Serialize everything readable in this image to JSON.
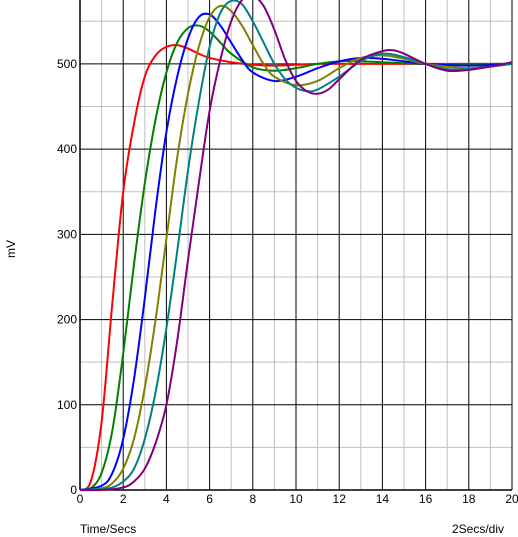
{
  "chart_data": {
    "type": "line",
    "xlabel": "Time/Secs",
    "ylabel": "mV",
    "scale_note": "2Secs/div",
    "xlim": [
      0,
      20
    ],
    "ylim": [
      0,
      575
    ],
    "x_ticks": [
      0,
      2,
      4,
      6,
      8,
      10,
      12,
      14,
      16,
      18,
      20
    ],
    "y_ticks": [
      0,
      100,
      200,
      300,
      400,
      500
    ],
    "grid": true,
    "colors": {
      "major_grid": "#000000",
      "minor_grid": "#c0c0c0",
      "background": "#ffffff"
    },
    "series": [
      {
        "color": "#ff0000",
        "x": [
          0,
          0.5,
          1,
          1.5,
          2,
          2.5,
          3,
          3.5,
          4,
          4.5,
          5,
          5.5,
          6,
          7,
          8,
          9,
          10,
          11,
          12,
          14,
          16,
          18,
          20
        ],
        "y": [
          0,
          10,
          80,
          220,
          350,
          430,
          485,
          510,
          520,
          522,
          518,
          512,
          507,
          502,
          499,
          498,
          499,
          500,
          500,
          500,
          500,
          500,
          500
        ]
      },
      {
        "color": "#008000",
        "x": [
          0,
          0.5,
          1,
          1.5,
          2,
          2.5,
          3,
          3.5,
          4,
          4.5,
          5,
          5.5,
          6,
          6.5,
          7,
          8,
          9,
          10,
          11,
          12,
          13,
          14,
          16,
          18,
          20
        ],
        "y": [
          0,
          2,
          20,
          70,
          160,
          265,
          360,
          435,
          490,
          525,
          542,
          545,
          538,
          525,
          512,
          496,
          492,
          495,
          500,
          503,
          503,
          502,
          500,
          500,
          500
        ]
      },
      {
        "color": "#0000ff",
        "x": [
          0,
          1,
          1.5,
          2,
          2.5,
          3,
          3.5,
          4,
          4.5,
          5,
          5.5,
          6,
          6.5,
          7,
          7.5,
          8,
          9,
          10,
          11,
          12,
          13,
          14,
          15,
          16,
          18,
          20
        ],
        "y": [
          0,
          5,
          20,
          60,
          130,
          225,
          330,
          420,
          485,
          530,
          555,
          558,
          545,
          525,
          505,
          490,
          480,
          485,
          495,
          503,
          507,
          506,
          503,
          500,
          498,
          500
        ]
      },
      {
        "color": "#808000",
        "x": [
          0,
          1,
          1.5,
          2,
          2.5,
          3,
          3.5,
          4,
          4.5,
          5,
          5.5,
          6,
          6.5,
          7,
          7.5,
          8,
          8.5,
          9,
          10,
          11,
          12,
          13,
          14,
          15,
          16,
          18,
          20
        ],
        "y": [
          0,
          2,
          8,
          25,
          60,
          120,
          200,
          295,
          390,
          465,
          520,
          555,
          568,
          562,
          545,
          522,
          500,
          485,
          475,
          480,
          495,
          507,
          510,
          506,
          500,
          495,
          500
        ]
      },
      {
        "color": "#008080",
        "x": [
          0,
          1,
          1.5,
          2,
          2.5,
          3,
          3.5,
          4,
          4.5,
          5,
          5.5,
          6,
          6.5,
          7,
          7.5,
          8,
          8.5,
          9,
          9.5,
          10,
          10.5,
          11,
          12,
          13,
          14,
          15,
          16,
          17,
          18,
          20
        ],
        "y": [
          0,
          1,
          3,
          10,
          25,
          60,
          115,
          190,
          280,
          375,
          455,
          520,
          560,
          574,
          570,
          550,
          525,
          500,
          482,
          472,
          468,
          470,
          485,
          503,
          512,
          508,
          500,
          494,
          494,
          500
        ]
      },
      {
        "color": "#800080",
        "x": [
          0,
          1,
          2,
          2.5,
          3,
          3.5,
          4,
          4.5,
          5,
          5.5,
          6,
          6.5,
          7,
          7.5,
          8,
          8.5,
          9,
          9.5,
          10,
          10.5,
          11,
          11.5,
          12,
          13,
          14,
          14.5,
          15,
          16,
          17,
          18,
          19,
          20
        ],
        "y": [
          0,
          0,
          3,
          10,
          25,
          55,
          100,
          175,
          270,
          360,
          445,
          505,
          550,
          575,
          580,
          568,
          540,
          505,
          480,
          468,
          465,
          470,
          482,
          505,
          515,
          516,
          512,
          500,
          492,
          493,
          497,
          502
        ]
      }
    ]
  }
}
